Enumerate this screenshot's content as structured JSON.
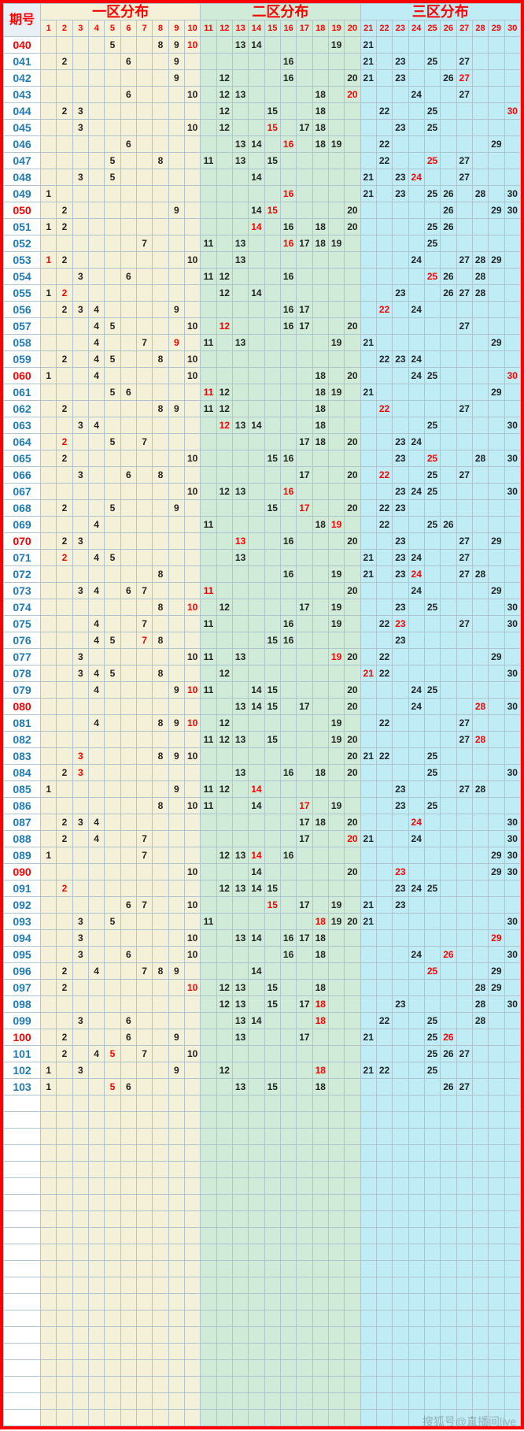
{
  "title_issue": "期号",
  "zones": [
    {
      "label": "一区分布",
      "bg": "#f5f0d8",
      "start": 1,
      "end": 10
    },
    {
      "label": "二区分布",
      "bg": "#d0ecd8",
      "start": 11,
      "end": 20
    },
    {
      "label": "三区分布",
      "bg": "#c0ecf5",
      "start": 21,
      "end": 30
    }
  ],
  "header_bg": "#e8f0f5",
  "grid_color": "#b0c4d0",
  "border_color": "#ff0000",
  "red_issues": [
    "040",
    "050",
    "060",
    "070",
    "080",
    "090",
    "100"
  ],
  "rows": [
    {
      "issue": "040",
      "nums": [
        5,
        8,
        9,
        10,
        13,
        14,
        19,
        21
      ]
    },
    {
      "issue": "041",
      "nums": [
        2,
        6,
        9,
        16,
        21,
        23,
        25,
        27
      ]
    },
    {
      "issue": "042",
      "nums": [
        9,
        12,
        16,
        20,
        21,
        23,
        26,
        27
      ]
    },
    {
      "issue": "043",
      "nums": [
        6,
        10,
        12,
        13,
        18,
        20,
        24,
        27
      ]
    },
    {
      "issue": "044",
      "nums": [
        2,
        3,
        12,
        15,
        18,
        22,
        25,
        30
      ]
    },
    {
      "issue": "045",
      "nums": [
        3,
        10,
        12,
        15,
        17,
        18,
        23,
        25
      ]
    },
    {
      "issue": "046",
      "nums": [
        6,
        13,
        14,
        16,
        18,
        19,
        22,
        29
      ]
    },
    {
      "issue": "047",
      "nums": [
        5,
        8,
        11,
        13,
        15,
        22,
        25,
        27
      ]
    },
    {
      "issue": "048",
      "nums": [
        3,
        5,
        14,
        21,
        23,
        24,
        27
      ]
    },
    {
      "issue": "049",
      "nums": [
        1,
        16,
        21,
        23,
        25,
        26,
        28,
        30
      ]
    },
    {
      "issue": "050",
      "nums": [
        2,
        9,
        14,
        15,
        20,
        26,
        29,
        30
      ]
    },
    {
      "issue": "051",
      "nums": [
        1,
        2,
        14,
        16,
        18,
        20,
        25,
        26
      ]
    },
    {
      "issue": "052",
      "nums": [
        7,
        11,
        13,
        16,
        17,
        18,
        19,
        25
      ]
    },
    {
      "issue": "053",
      "nums": [
        1,
        2,
        10,
        13,
        24,
        27,
        28,
        29
      ]
    },
    {
      "issue": "054",
      "nums": [
        3,
        6,
        11,
        12,
        16,
        25,
        26,
        28
      ]
    },
    {
      "issue": "055",
      "nums": [
        1,
        2,
        12,
        14,
        23,
        26,
        27,
        28
      ]
    },
    {
      "issue": "056",
      "nums": [
        2,
        3,
        4,
        9,
        16,
        17,
        22,
        24
      ]
    },
    {
      "issue": "057",
      "nums": [
        4,
        5,
        10,
        12,
        16,
        17,
        20,
        27
      ]
    },
    {
      "issue": "058",
      "nums": [
        4,
        7,
        9,
        11,
        13,
        19,
        21,
        29
      ]
    },
    {
      "issue": "059",
      "nums": [
        2,
        4,
        5,
        8,
        10,
        22,
        23,
        24
      ]
    },
    {
      "issue": "060",
      "nums": [
        1,
        4,
        10,
        18,
        20,
        24,
        25,
        30
      ]
    },
    {
      "issue": "061",
      "nums": [
        5,
        6,
        11,
        12,
        18,
        19,
        21,
        29
      ]
    },
    {
      "issue": "062",
      "nums": [
        2,
        8,
        9,
        11,
        12,
        18,
        22,
        27
      ]
    },
    {
      "issue": "063",
      "nums": [
        3,
        4,
        12,
        13,
        14,
        18,
        25,
        30
      ]
    },
    {
      "issue": "064",
      "nums": [
        2,
        5,
        7,
        17,
        18,
        20,
        23,
        24
      ]
    },
    {
      "issue": "065",
      "nums": [
        2,
        10,
        15,
        16,
        23,
        25,
        28,
        30
      ]
    },
    {
      "issue": "066",
      "nums": [
        3,
        6,
        8,
        17,
        20,
        22,
        25,
        27
      ]
    },
    {
      "issue": "067",
      "nums": [
        10,
        12,
        13,
        16,
        23,
        24,
        25,
        30
      ]
    },
    {
      "issue": "068",
      "nums": [
        2,
        5,
        9,
        15,
        17,
        20,
        22,
        23
      ]
    },
    {
      "issue": "069",
      "nums": [
        4,
        11,
        18,
        19,
        22,
        25,
        26
      ]
    },
    {
      "issue": "070",
      "nums": [
        2,
        3,
        13,
        16,
        20,
        23,
        27,
        29
      ]
    },
    {
      "issue": "071",
      "nums": [
        2,
        4,
        5,
        13,
        21,
        23,
        24,
        27
      ]
    },
    {
      "issue": "072",
      "nums": [
        8,
        16,
        19,
        21,
        23,
        24,
        27,
        28
      ]
    },
    {
      "issue": "073",
      "nums": [
        3,
        4,
        6,
        7,
        11,
        20,
        24,
        29
      ]
    },
    {
      "issue": "074",
      "nums": [
        8,
        10,
        12,
        17,
        19,
        23,
        25,
        30
      ]
    },
    {
      "issue": "075",
      "nums": [
        4,
        7,
        11,
        16,
        19,
        22,
        23,
        27,
        30
      ]
    },
    {
      "issue": "076",
      "nums": [
        4,
        5,
        7,
        8,
        15,
        16,
        23
      ]
    },
    {
      "issue": "077",
      "nums": [
        3,
        10,
        11,
        13,
        19,
        20,
        22,
        29
      ]
    },
    {
      "issue": "078",
      "nums": [
        3,
        4,
        5,
        8,
        12,
        21,
        22,
        30
      ]
    },
    {
      "issue": "079",
      "nums": [
        4,
        9,
        10,
        11,
        14,
        15,
        20,
        24,
        25
      ]
    },
    {
      "issue": "080",
      "nums": [
        13,
        14,
        15,
        17,
        20,
        24,
        28,
        30
      ]
    },
    {
      "issue": "081",
      "nums": [
        4,
        8,
        9,
        10,
        12,
        19,
        22,
        27
      ]
    },
    {
      "issue": "082",
      "nums": [
        11,
        12,
        13,
        15,
        19,
        20,
        27,
        28
      ]
    },
    {
      "issue": "083",
      "nums": [
        3,
        8,
        9,
        10,
        20,
        21,
        22,
        25
      ]
    },
    {
      "issue": "084",
      "nums": [
        2,
        3,
        13,
        16,
        18,
        20,
        25,
        30
      ]
    },
    {
      "issue": "085",
      "nums": [
        1,
        9,
        11,
        12,
        14,
        23,
        27,
        28
      ]
    },
    {
      "issue": "086",
      "nums": [
        8,
        10,
        11,
        14,
        17,
        19,
        23,
        25
      ]
    },
    {
      "issue": "087",
      "nums": [
        2,
        3,
        4,
        17,
        18,
        20,
        24,
        30
      ]
    },
    {
      "issue": "088",
      "nums": [
        2,
        4,
        7,
        17,
        20,
        21,
        24,
        30
      ]
    },
    {
      "issue": "089",
      "nums": [
        1,
        7,
        12,
        13,
        14,
        16,
        29,
        30
      ]
    },
    {
      "issue": "090",
      "nums": [
        10,
        14,
        20,
        23,
        29,
        30
      ]
    },
    {
      "issue": "091",
      "nums": [
        2,
        12,
        13,
        14,
        15,
        23,
        24,
        25
      ]
    },
    {
      "issue": "092",
      "nums": [
        6,
        7,
        10,
        15,
        17,
        19,
        21,
        23
      ]
    },
    {
      "issue": "093",
      "nums": [
        3,
        5,
        11,
        18,
        19,
        20,
        21,
        30
      ]
    },
    {
      "issue": "094",
      "nums": [
        3,
        10,
        13,
        14,
        16,
        17,
        18,
        29
      ]
    },
    {
      "issue": "095",
      "nums": [
        3,
        6,
        10,
        16,
        18,
        24,
        26,
        30
      ]
    },
    {
      "issue": "096",
      "nums": [
        2,
        4,
        7,
        8,
        9,
        14,
        25,
        29
      ]
    },
    {
      "issue": "097",
      "nums": [
        2,
        10,
        12,
        13,
        15,
        18,
        28,
        29
      ]
    },
    {
      "issue": "098",
      "nums": [
        12,
        13,
        15,
        17,
        18,
        23,
        28,
        30
      ]
    },
    {
      "issue": "099",
      "nums": [
        3,
        6,
        13,
        14,
        18,
        22,
        25,
        28
      ]
    },
    {
      "issue": "100",
      "nums": [
        2,
        6,
        9,
        13,
        17,
        21,
        25,
        26
      ]
    },
    {
      "issue": "101",
      "nums": [
        2,
        4,
        5,
        7,
        10,
        25,
        26,
        27
      ]
    },
    {
      "issue": "102",
      "nums": [
        1,
        3,
        9,
        12,
        18,
        21,
        22,
        25
      ]
    },
    {
      "issue": "103",
      "nums": [
        1,
        5,
        6,
        13,
        15,
        18,
        26,
        27
      ]
    }
  ],
  "red_cells": {
    "040": [
      10
    ],
    "042": [
      27
    ],
    "043": [
      20
    ],
    "044": [
      30
    ],
    "045": [
      15
    ],
    "046": [
      16
    ],
    "047": [
      25
    ],
    "048": [
      24
    ],
    "049": [
      16
    ],
    "050": [
      15
    ],
    "051": [
      14
    ],
    "052": [
      16
    ],
    "053": [
      1
    ],
    "054": [
      25
    ],
    "055": [
      2
    ],
    "056": [
      22
    ],
    "057": [
      12
    ],
    "058": [
      9
    ],
    "060": [
      30
    ],
    "061": [
      11
    ],
    "062": [
      22
    ],
    "063": [
      12
    ],
    "064": [
      2
    ],
    "065": [
      25
    ],
    "066": [
      22
    ],
    "067": [
      16
    ],
    "068": [
      17
    ],
    "069": [
      19
    ],
    "070": [
      13
    ],
    "071": [
      2
    ],
    "072": [
      24
    ],
    "073": [
      11
    ],
    "074": [
      10
    ],
    "075": [
      23
    ],
    "076": [
      7
    ],
    "077": [
      19
    ],
    "078": [
      21
    ],
    "079": [
      10
    ],
    "080": [
      28
    ],
    "081": [
      10
    ],
    "082": [
      28
    ],
    "083": [
      3
    ],
    "084": [
      3
    ],
    "085": [
      14
    ],
    "086": [
      17
    ],
    "087": [
      24
    ],
    "088": [
      20
    ],
    "089": [
      14
    ],
    "090": [
      23
    ],
    "091": [
      2
    ],
    "092": [
      15
    ],
    "093": [
      18
    ],
    "094": [
      29
    ],
    "095": [
      26
    ],
    "096": [
      25
    ],
    "097": [
      10
    ],
    "098": [
      18
    ],
    "099": [
      18
    ],
    "100": [
      26
    ],
    "101": [
      5
    ],
    "102": [
      18
    ],
    "103": [
      5
    ]
  },
  "empty_rows_after": 20,
  "watermark": "搜狐号@直播间live"
}
